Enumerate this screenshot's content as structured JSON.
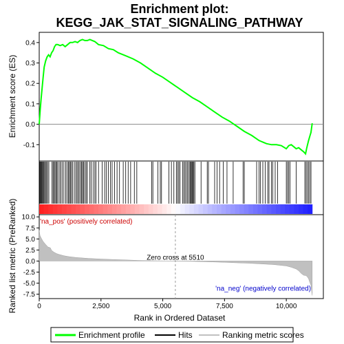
{
  "chart_data": {
    "type": "line",
    "title_line1": "Enrichment plot:",
    "title_line2": "KEGG_JAK_STAT_SIGNALING_PATHWAY",
    "xlabel": "Rank in Ordered Dataset",
    "xlim": [
      0,
      11500
    ],
    "x_ticks": [
      0,
      2500,
      5000,
      7500,
      10000
    ],
    "x_tick_labels": [
      "0",
      "2,500",
      "5,000",
      "7,500",
      "10,000"
    ],
    "top_panel": {
      "ylabel": "Enrichment score (ES)",
      "ylim": [
        -0.18,
        0.45
      ],
      "y_ticks": [
        -0.1,
        0.0,
        0.1,
        0.2,
        0.3,
        0.4
      ],
      "y_tick_labels": [
        "-0.1",
        "0.0",
        "0.1",
        "0.2",
        "0.3",
        "0.4"
      ],
      "series_name": "Enrichment profile",
      "series_color": "#00ff00",
      "x": [
        0,
        40,
        80,
        120,
        160,
        200,
        260,
        320,
        380,
        440,
        500,
        560,
        620,
        680,
        750,
        850,
        950,
        1050,
        1150,
        1250,
        1350,
        1450,
        1550,
        1650,
        1750,
        1850,
        1950,
        2050,
        2150,
        2250,
        2400,
        2600,
        2800,
        3000,
        3200,
        3500,
        3800,
        4100,
        4400,
        4700,
        5000,
        5300,
        5600,
        5900,
        6200,
        6500,
        6800,
        7100,
        7400,
        7700,
        8000,
        8300,
        8600,
        8900,
        9200,
        9400,
        9600,
        9800,
        10000,
        10100,
        10200,
        10300,
        10400,
        10500,
        10600,
        10700,
        10780,
        10820,
        10860,
        10900,
        10950,
        11000,
        11050
      ],
      "y": [
        0.0,
        0.07,
        0.13,
        0.18,
        0.23,
        0.28,
        0.31,
        0.33,
        0.34,
        0.33,
        0.35,
        0.36,
        0.38,
        0.39,
        0.39,
        0.385,
        0.39,
        0.38,
        0.39,
        0.4,
        0.4,
        0.405,
        0.4,
        0.41,
        0.415,
        0.41,
        0.41,
        0.415,
        0.41,
        0.405,
        0.39,
        0.385,
        0.37,
        0.365,
        0.35,
        0.335,
        0.32,
        0.3,
        0.275,
        0.25,
        0.23,
        0.205,
        0.18,
        0.155,
        0.13,
        0.11,
        0.085,
        0.06,
        0.035,
        0.015,
        -0.01,
        -0.035,
        -0.055,
        -0.08,
        -0.095,
        -0.1,
        -0.1,
        -0.105,
        -0.12,
        -0.105,
        -0.1,
        -0.11,
        -0.12,
        -0.115,
        -0.125,
        -0.135,
        -0.145,
        -0.12,
        -0.1,
        -0.08,
        -0.06,
        -0.04,
        0.005
      ]
    },
    "hits_panel": {
      "legend_name": "Hits",
      "hit_positions": [
        15,
        40,
        70,
        100,
        130,
        160,
        190,
        220,
        260,
        300,
        340,
        390,
        520,
        560,
        600,
        640,
        680,
        720,
        760,
        830,
        880,
        940,
        1000,
        1070,
        1130,
        1180,
        1220,
        1260,
        1300,
        1350,
        1420,
        1480,
        1530,
        1580,
        1620,
        1680,
        1720,
        1760,
        1800,
        1850,
        1900,
        1950,
        2050,
        2100,
        2180,
        2250,
        2300,
        2400,
        2550,
        2650,
        2720,
        2800,
        2880,
        2950,
        3050,
        3150,
        3250,
        3400,
        3500,
        3600,
        3700,
        3850,
        3950,
        4550,
        4600,
        4800,
        4900,
        4950,
        5250,
        5350,
        5450,
        5550,
        5600,
        5650,
        5700,
        5800,
        5850,
        5900,
        5950,
        6000,
        6050,
        6100,
        6130,
        6160,
        6200,
        6230,
        6260,
        6300,
        6550,
        6800,
        6850,
        7100,
        7200,
        7300,
        7450,
        7600,
        7850,
        8250,
        8300,
        8800,
        8900,
        8950,
        9050,
        9150,
        9250,
        9300,
        9400,
        9450,
        9550,
        9650,
        10000,
        10050,
        10100,
        10150,
        10400,
        10750,
        10800,
        10850,
        10900,
        10950,
        11000
      ]
    },
    "ranked_panel": {
      "ylabel": "Ranked list metric (PreRanked)",
      "legend_name": "Ranking metric scores",
      "ylim": [
        -8.5,
        10.5
      ],
      "y_ticks": [
        -7.5,
        -5.0,
        -2.5,
        0.0,
        2.5,
        5.0,
        7.5,
        10.0
      ],
      "y_tick_labels": [
        "-7.5",
        "-5.0",
        "-2.5",
        "0.0",
        "2.5",
        "5.0",
        "7.5",
        "10.0"
      ],
      "x": [
        0,
        30,
        80,
        150,
        250,
        350,
        450,
        500,
        600,
        700,
        800,
        1000,
        1200,
        1500,
        2000,
        2500,
        3000,
        3500,
        4000,
        4500,
        5000,
        5510,
        6000,
        6500,
        7000,
        7500,
        8000,
        8500,
        9000,
        9500,
        10000,
        10200,
        10400,
        10500,
        10600,
        10700,
        10800,
        10850,
        10900,
        10950,
        11000,
        11050
      ],
      "y": [
        7.0,
        5.8,
        5.2,
        4.5,
        3.8,
        3.2,
        3.0,
        2.4,
        2.0,
        1.7,
        1.5,
        1.2,
        1.0,
        0.8,
        0.6,
        0.45,
        0.35,
        0.25,
        0.15,
        0.08,
        0.03,
        0.0,
        -0.05,
        -0.12,
        -0.2,
        -0.3,
        -0.4,
        -0.5,
        -0.65,
        -0.8,
        -1.1,
        -1.4,
        -1.8,
        -2.2,
        -2.8,
        -3.2,
        -3.3,
        -3.6,
        -4.0,
        -4.8,
        -5.5,
        -7.8
      ],
      "zero_cross_label": "Zero cross at 5510",
      "zero_cross": 5510,
      "pos_label": "'na_pos' (positively correlated)",
      "neg_label": "'na_neg' (negatively correlated)",
      "pos_color": "#cc0000",
      "neg_color": "#0000cc"
    },
    "legend": {
      "placement": "bottom",
      "items": [
        "Enrichment profile",
        "Hits",
        "Ranking metric scores"
      ]
    }
  }
}
